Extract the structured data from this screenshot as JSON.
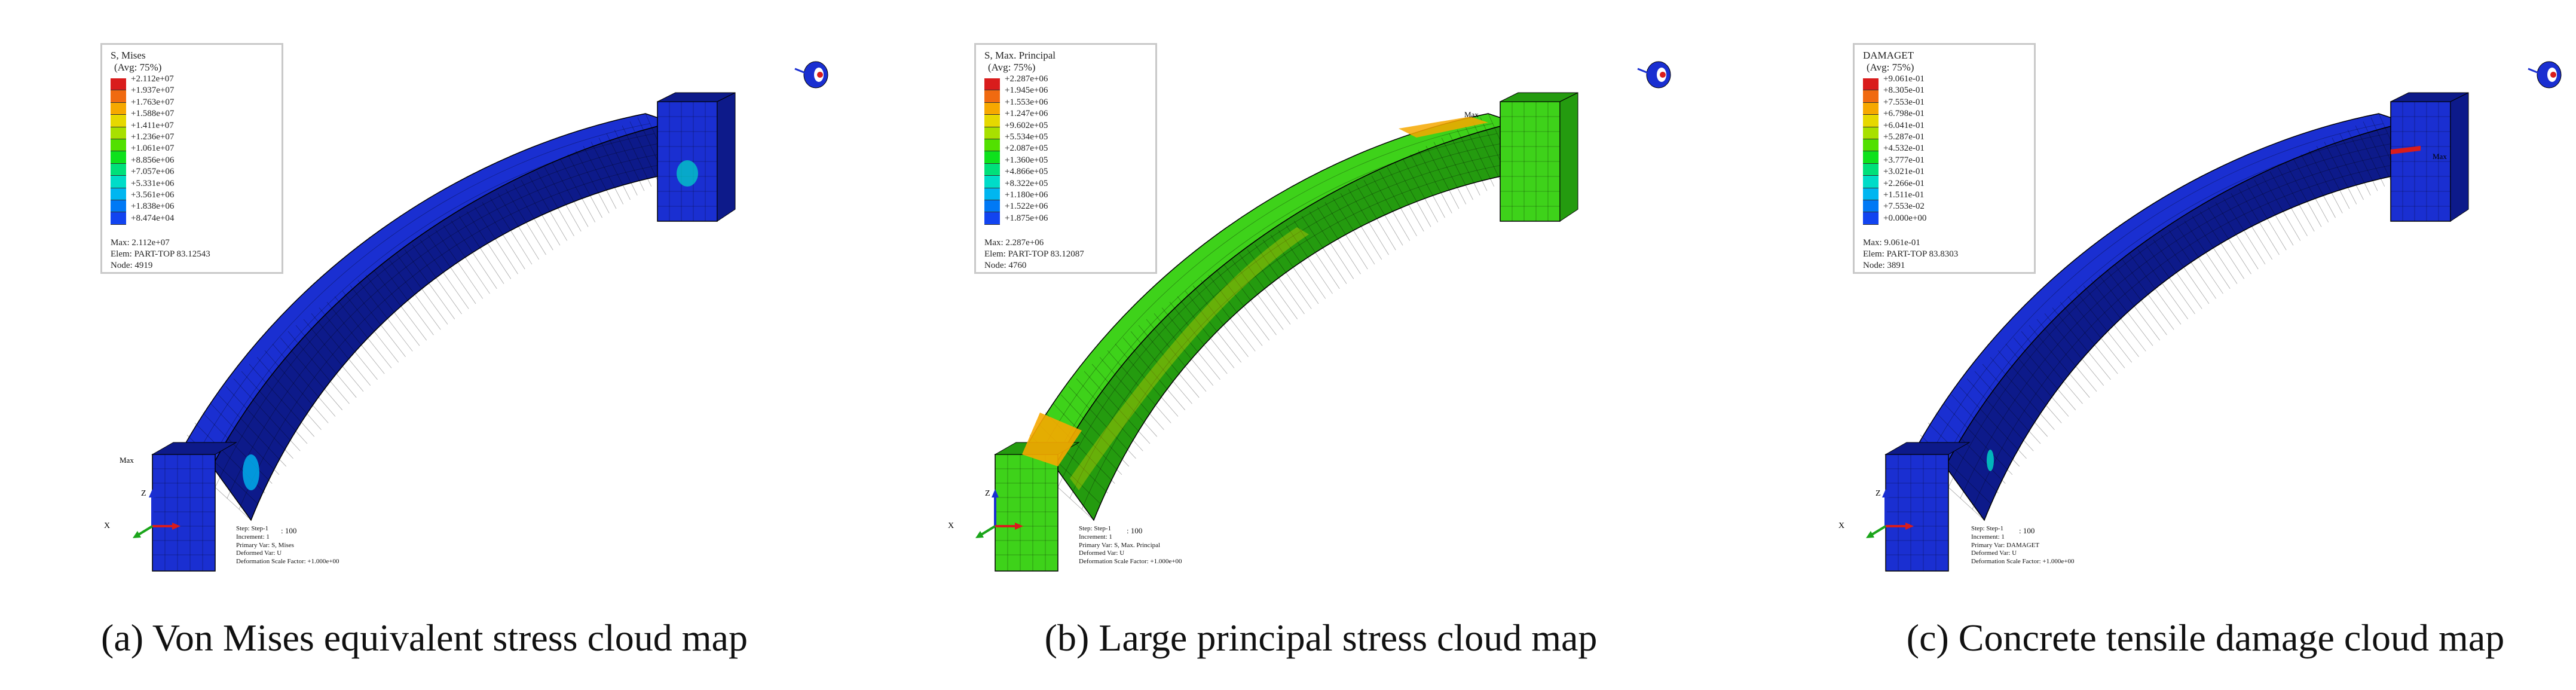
{
  "scale_colors": [
    "#d91c1c",
    "#f06a10",
    "#f6a800",
    "#e6d800",
    "#a8e000",
    "#52e000",
    "#0ee11c",
    "#00e07a",
    "#00dcc8",
    "#00b6f0",
    "#0079f5",
    "#1244f0",
    "#1a1ee6"
  ],
  "panels": [
    {
      "id": "a",
      "caption": "(a) Von Mises equivalent stress cloud map",
      "legend": {
        "title": "S, Mises",
        "subtitle": "(Avg: 75%)",
        "values": [
          "2.112e+07",
          "1.937e+07",
          "1.763e+07",
          "1.588e+07",
          "1.411e+07",
          "1.236e+07",
          "1.061e+07",
          "8.856e+06",
          "7.057e+06",
          "5.331e+06",
          "3.561e+06",
          "1.838e+06",
          "8.474e+04"
        ],
        "max_line": "Max: 2.112e+07",
        "elem_line": "Elem: PART-TOP 83.12543",
        "node_line": "Node: 4919"
      },
      "max_marker": "Max",
      "step_info": [
        "Step: Step-1",
        "Increment: 1",
        "Primary Var: S, Mises",
        "Deformed Var: U",
        "Deformation Scale Factor: +1.000e+00"
      ],
      "time_label": ": 100",
      "beam_color": "#1a2fd1",
      "beam_color_dark": "#0d1a8a"
    },
    {
      "id": "b",
      "caption": "(b) Large principal stress cloud map",
      "legend": {
        "title": "S, Max. Principal",
        "subtitle": "(Avg: 75%)",
        "values": [
          "2.287e+06",
          "1.945e+06",
          "1.553e+06",
          "1.247e+06",
          "9.602e+05",
          "5.534e+05",
          "2.087e+05",
          "1.360e+05",
          "4.866e+05",
          "8.322e+05",
          "1.180e+06",
          "1.522e+06",
          "1.875e+06"
        ],
        "max_line": "Max: 2.287e+06",
        "elem_line": "Elem: PART-TOP 83.12087",
        "node_line": "Node: 4760"
      },
      "max_marker": "Max",
      "step_info": [
        "Step: Step-1",
        "Increment: 1",
        "Primary Var: S, Max. Principal",
        "Deformed Var: U",
        "Deformation Scale Factor: +1.000e+00"
      ],
      "time_label": ": 100",
      "beam_color": "#3ed21a",
      "beam_color_dark": "#249b0f"
    },
    {
      "id": "c",
      "caption": "(c) Concrete tensile damage cloud map",
      "legend": {
        "title": "DAMAGET",
        "subtitle": "(Avg: 75%)",
        "values": [
          "9.061e-01",
          "8.305e-01",
          "7.553e-01",
          "6.798e-01",
          "6.041e-01",
          "5.287e-01",
          "4.532e-01",
          "3.777e-01",
          "3.021e-01",
          "2.266e-01",
          "1.511e-01",
          "7.553e-02",
          "0.000e+00"
        ],
        "max_line": "Max: 9.061e-01",
        "elem_line": "Elem: PART-TOP 83.8303",
        "node_line": "Node: 3891"
      },
      "max_marker": "Max",
      "step_info": [
        "Step: Step-1",
        "Increment: 1",
        "Primary Var: DAMAGET",
        "Deformed Var: U",
        "Deformation Scale Factor: +1.000e+00"
      ],
      "time_label": ": 100",
      "beam_color": "#1a2fd1",
      "beam_color_dark": "#0d1a8a"
    }
  ]
}
